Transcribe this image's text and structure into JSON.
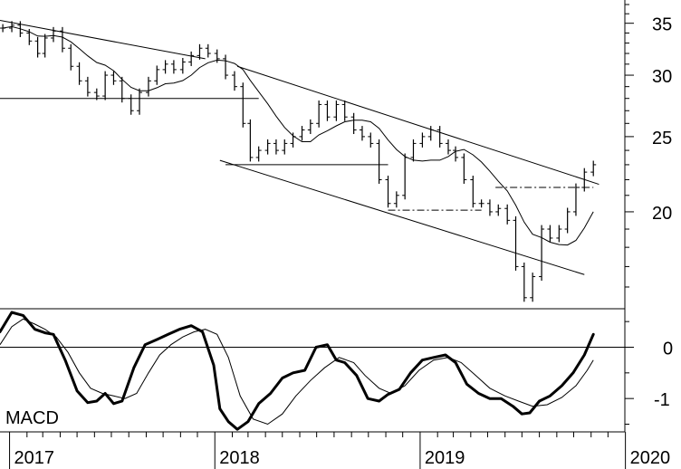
{
  "chart_data": [
    {
      "type": "ohlc-bar",
      "panel": "price",
      "y_ticks": [
        20,
        25,
        30,
        35
      ],
      "y_tick_labels": [
        "20",
        "25",
        "30",
        "35"
      ],
      "y_range": [
        15,
        37.5
      ],
      "x_tick_labels": [
        "2017",
        "2018",
        "2019",
        "2020"
      ],
      "x_range": [
        "2016-12-15",
        "2019-12-31"
      ],
      "scale": "log",
      "moving_average": true,
      "close_series": {
        "x": [
          "2016-12-20",
          "2017-01-05",
          "2017-01-20",
          "2017-02-05",
          "2017-02-20",
          "2017-03-05",
          "2017-03-20",
          "2017-04-05",
          "2017-04-20",
          "2017-05-05",
          "2017-05-20",
          "2017-06-05",
          "2017-06-20",
          "2017-07-05",
          "2017-07-20",
          "2017-08-05",
          "2017-08-20",
          "2017-09-05",
          "2017-09-20",
          "2017-10-05",
          "2017-10-20",
          "2017-11-05",
          "2017-11-20",
          "2017-12-05",
          "2017-12-20",
          "2018-01-05",
          "2018-01-20",
          "2018-02-05",
          "2018-02-20",
          "2018-03-05",
          "2018-03-20",
          "2018-04-05",
          "2018-04-20",
          "2018-05-05",
          "2018-05-20",
          "2018-06-05",
          "2018-06-20",
          "2018-07-05",
          "2018-07-20",
          "2018-08-05",
          "2018-08-20",
          "2018-09-05",
          "2018-09-20",
          "2018-10-05",
          "2018-10-20",
          "2018-11-05",
          "2018-11-20",
          "2018-12-05",
          "2018-12-20",
          "2019-01-05",
          "2019-01-20",
          "2019-02-05",
          "2019-02-20",
          "2019-03-05",
          "2019-03-20",
          "2019-04-05",
          "2019-04-20",
          "2019-05-05",
          "2019-05-20",
          "2019-06-05",
          "2019-06-20",
          "2019-07-05",
          "2019-07-20",
          "2019-08-05",
          "2019-08-20",
          "2019-09-05",
          "2019-09-20",
          "2019-10-05",
          "2019-10-20",
          "2019-11-05"
        ],
        "y": [
          34.5,
          34.8,
          34.0,
          33.2,
          32.0,
          33.5,
          34.2,
          32.5,
          30.8,
          29.5,
          28.5,
          28.2,
          30.0,
          29.5,
          28.0,
          27.0,
          28.5,
          29.5,
          30.5,
          31.0,
          30.5,
          31.2,
          31.8,
          32.5,
          32.0,
          31.5,
          30.0,
          29.0,
          26.0,
          23.5,
          24.0,
          24.5,
          24.0,
          24.5,
          25.0,
          25.5,
          26.0,
          27.5,
          26.5,
          27.5,
          26.5,
          25.5,
          25.0,
          24.5,
          22.0,
          20.5,
          21.0,
          23.5,
          24.5,
          25.0,
          25.5,
          24.5,
          24.0,
          23.5,
          22.0,
          20.5,
          20.5,
          20.0,
          20.2,
          19.5,
          17.0,
          15.5,
          16.5,
          19.0,
          18.5,
          19.0,
          20.0,
          21.5,
          22.5,
          23.0
        ]
      },
      "trend_lines": [
        {
          "kind": "falling-resistance",
          "from": [
            "2016-12-15",
            35.3
          ],
          "to": [
            "2017-12-15",
            31.5
          ]
        },
        {
          "kind": "falling-resistance",
          "from": [
            "2018-02-10",
            30.8
          ],
          "to": [
            "2019-11-15",
            21.7
          ]
        },
        {
          "kind": "falling-support",
          "from": [
            "2018-01-10",
            23.3
          ],
          "to": [
            "2019-10-20",
            16.6
          ]
        },
        {
          "kind": "horizontal",
          "level": 28.0,
          "from": "2016-12-15",
          "to": "2018-03-20"
        },
        {
          "kind": "horizontal",
          "level": 23.0,
          "from": "2018-01-20",
          "to": "2018-11-05"
        },
        {
          "kind": "horizontal-dashdot",
          "level": 20.1,
          "from": "2018-11-05",
          "to": "2019-04-20"
        },
        {
          "kind": "horizontal-dashdot",
          "level": 21.5,
          "from": "2019-05-15",
          "to": "2019-11-05"
        }
      ]
    },
    {
      "type": "line",
      "panel": "indicator",
      "label": "MACD",
      "y_ticks": [
        -1,
        0
      ],
      "y_tick_labels": [
        "-1",
        "0"
      ],
      "y_range": [
        -1.65,
        0.75
      ],
      "zero_line": true,
      "series": [
        {
          "role": "macd",
          "style": "thick",
          "x": [
            "2016-12-15",
            "2017-01-05",
            "2017-01-25",
            "2017-02-15",
            "2017-03-05",
            "2017-03-20",
            "2017-04-10",
            "2017-05-01",
            "2017-05-20",
            "2017-06-05",
            "2017-06-20",
            "2017-07-05",
            "2017-07-20",
            "2017-08-10",
            "2017-08-30",
            "2017-09-20",
            "2017-10-10",
            "2017-10-30",
            "2017-11-20",
            "2017-12-10",
            "2017-12-30",
            "2018-01-10",
            "2018-01-25",
            "2018-02-10",
            "2018-03-01",
            "2018-03-20",
            "2018-04-10",
            "2018-05-01",
            "2018-05-20",
            "2018-06-10",
            "2018-06-30",
            "2018-07-20",
            "2018-08-05",
            "2018-08-20",
            "2018-09-10",
            "2018-09-30",
            "2018-10-20",
            "2018-11-05",
            "2018-11-25",
            "2018-12-15",
            "2019-01-05",
            "2019-01-25",
            "2019-02-15",
            "2019-03-05",
            "2019-03-25",
            "2019-04-15",
            "2019-05-05",
            "2019-05-25",
            "2019-06-15",
            "2019-07-01",
            "2019-07-15",
            "2019-08-01",
            "2019-08-20",
            "2019-09-10",
            "2019-09-30",
            "2019-10-20",
            "2019-11-05"
          ],
          "y": [
            0.3,
            0.68,
            0.62,
            0.35,
            0.28,
            0.25,
            -0.25,
            -0.85,
            -1.08,
            -1.05,
            -0.9,
            -1.1,
            -1.05,
            -0.4,
            0.05,
            0.15,
            0.25,
            0.35,
            0.42,
            0.3,
            -0.35,
            -1.2,
            -1.45,
            -1.6,
            -1.45,
            -1.1,
            -0.9,
            -0.6,
            -0.5,
            -0.45,
            0.0,
            0.05,
            -0.25,
            -0.3,
            -0.55,
            -1.0,
            -1.05,
            -0.92,
            -0.82,
            -0.5,
            -0.25,
            -0.2,
            -0.15,
            -0.3,
            -0.72,
            -0.9,
            -1.0,
            -1.0,
            -1.15,
            -1.3,
            -1.28,
            -1.05,
            -0.95,
            -0.75,
            -0.5,
            -0.15,
            0.25
          ]
        },
        {
          "role": "signal",
          "style": "thin",
          "x": [
            "2016-12-15",
            "2017-01-05",
            "2017-01-25",
            "2017-02-15",
            "2017-03-05",
            "2017-03-25",
            "2017-04-15",
            "2017-05-05",
            "2017-05-25",
            "2017-06-15",
            "2017-07-05",
            "2017-07-25",
            "2017-08-15",
            "2017-09-05",
            "2017-09-25",
            "2017-10-15",
            "2017-11-05",
            "2017-11-25",
            "2017-12-15",
            "2018-01-05",
            "2018-01-25",
            "2018-02-15",
            "2018-03-10",
            "2018-04-05",
            "2018-05-01",
            "2018-05-25",
            "2018-06-20",
            "2018-07-15",
            "2018-08-10",
            "2018-09-05",
            "2018-09-25",
            "2018-10-20",
            "2018-11-10",
            "2018-12-05",
            "2018-12-30",
            "2019-01-25",
            "2019-02-20",
            "2019-03-15",
            "2019-04-10",
            "2019-05-05",
            "2019-06-01",
            "2019-06-25",
            "2019-07-20",
            "2019-08-15",
            "2019-09-10",
            "2019-10-05",
            "2019-10-25",
            "2019-11-05"
          ],
          "y": [
            0.05,
            0.4,
            0.55,
            0.45,
            0.35,
            0.2,
            -0.1,
            -0.5,
            -0.8,
            -0.9,
            -0.95,
            -1.0,
            -0.9,
            -0.5,
            -0.15,
            0.05,
            0.2,
            0.3,
            0.35,
            0.25,
            -0.2,
            -0.95,
            -1.4,
            -1.5,
            -1.3,
            -0.95,
            -0.65,
            -0.4,
            -0.2,
            -0.3,
            -0.55,
            -0.8,
            -0.9,
            -0.75,
            -0.45,
            -0.25,
            -0.2,
            -0.3,
            -0.55,
            -0.8,
            -0.95,
            -1.05,
            -1.15,
            -1.12,
            -0.98,
            -0.75,
            -0.45,
            -0.25
          ]
        }
      ]
    }
  ]
}
